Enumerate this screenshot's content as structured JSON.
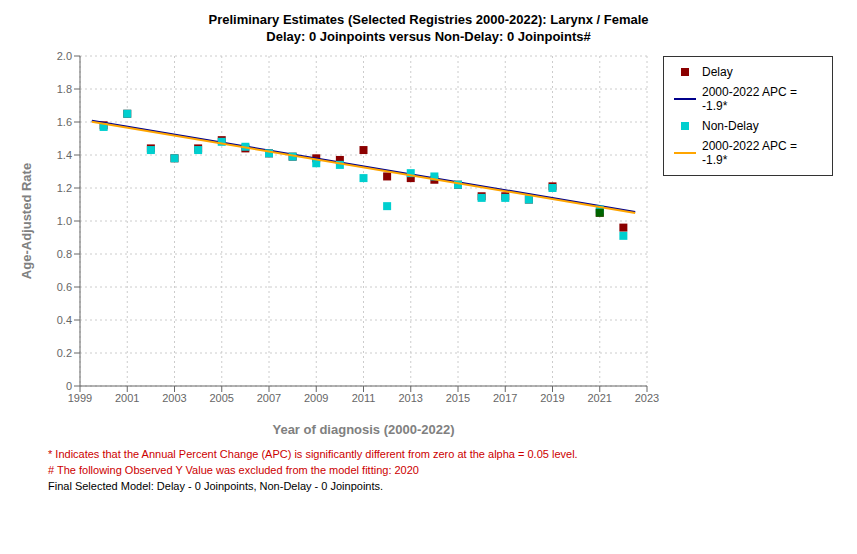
{
  "chart_data": {
    "type": "scatter",
    "title": "Preliminary Estimates (Selected Registries 2000-2022): Larynx / Female",
    "subtitle": "Delay: 0 Joinpoints  versus  Non-Delay: 0 Joinpoints#",
    "x_label": "Year of diagnosis (2000-2022)",
    "y_label": "Age-Adjusted Rate",
    "xlim": [
      1999,
      2023
    ],
    "ylim": [
      0,
      2.0
    ],
    "xticks": [
      1999,
      2001,
      2003,
      2005,
      2007,
      2009,
      2011,
      2013,
      2015,
      2017,
      2019,
      2021,
      2023
    ],
    "yticks": [
      0,
      0.2,
      0.4,
      0.6,
      0.8,
      {
        "value": 1.0,
        "label": "1.0"
      },
      1.2,
      1.4,
      1.6,
      1.8,
      {
        "value": 2.0,
        "label": "2.0"
      }
    ],
    "grid": true,
    "legend": "right",
    "series": [
      {
        "name": "Delay",
        "type": "scatter",
        "marker": "square",
        "color": "#8B0000",
        "x": [
          2000,
          2001,
          2002,
          2003,
          2004,
          2005,
          2006,
          2007,
          2008,
          2009,
          2010,
          2011,
          2012,
          2013,
          2014,
          2015,
          2016,
          2017,
          2018,
          2019,
          2021,
          2022
        ],
        "values": [
          1.58,
          1.65,
          1.44,
          1.38,
          1.44,
          1.49,
          1.44,
          1.41,
          1.39,
          1.38,
          1.37,
          1.43,
          1.27,
          1.26,
          1.25,
          1.22,
          1.15,
          1.15,
          1.13,
          1.21,
          1.05,
          0.96
        ]
      },
      {
        "name": "2000-2022 APC  = -1.9*",
        "type": "line",
        "line_style": "solid",
        "color": "#00008B",
        "x": [
          1999.5,
          2022.5
        ],
        "values": [
          1.607,
          1.055
        ]
      },
      {
        "name": "Non-Delay",
        "type": "scatter",
        "marker": "square",
        "color": "#00CFCF",
        "x": [
          2000,
          2001,
          2002,
          2003,
          2004,
          2005,
          2006,
          2007,
          2008,
          2009,
          2010,
          2011,
          2012,
          2013,
          2014,
          2015,
          2016,
          2017,
          2018,
          2019,
          2021,
          2022
        ],
        "values": [
          1.57,
          1.65,
          1.43,
          1.38,
          1.43,
          1.48,
          1.45,
          1.41,
          1.39,
          1.35,
          1.34,
          1.26,
          1.09,
          1.29,
          1.27,
          1.22,
          1.14,
          1.14,
          1.13,
          1.2,
          1.07,
          0.91
        ]
      },
      {
        "name": "2000-2022 APC  = -1.9*",
        "type": "line",
        "line_style": "solid",
        "color": "#FFA500",
        "x": [
          1999.5,
          2022.5
        ],
        "values": [
          1.601,
          1.049
        ]
      }
    ],
    "highlight_point": {
      "x": 2021,
      "y": 1.05,
      "color": "#006400"
    },
    "footnotes": [
      {
        "text": "* Indicates that the Annual Percent Change (APC) is significantly different from zero at the alpha = 0.05 level.",
        "color": "#CC0000"
      },
      {
        "text": "# The following Observed Y Value was excluded from the model fitting: 2020",
        "color": "#CC0000"
      },
      {
        "text": "Final Selected Model: Delay - 0 Joinpoints, Non-Delay - 0 Joinpoints.",
        "color": "#000000"
      }
    ]
  }
}
